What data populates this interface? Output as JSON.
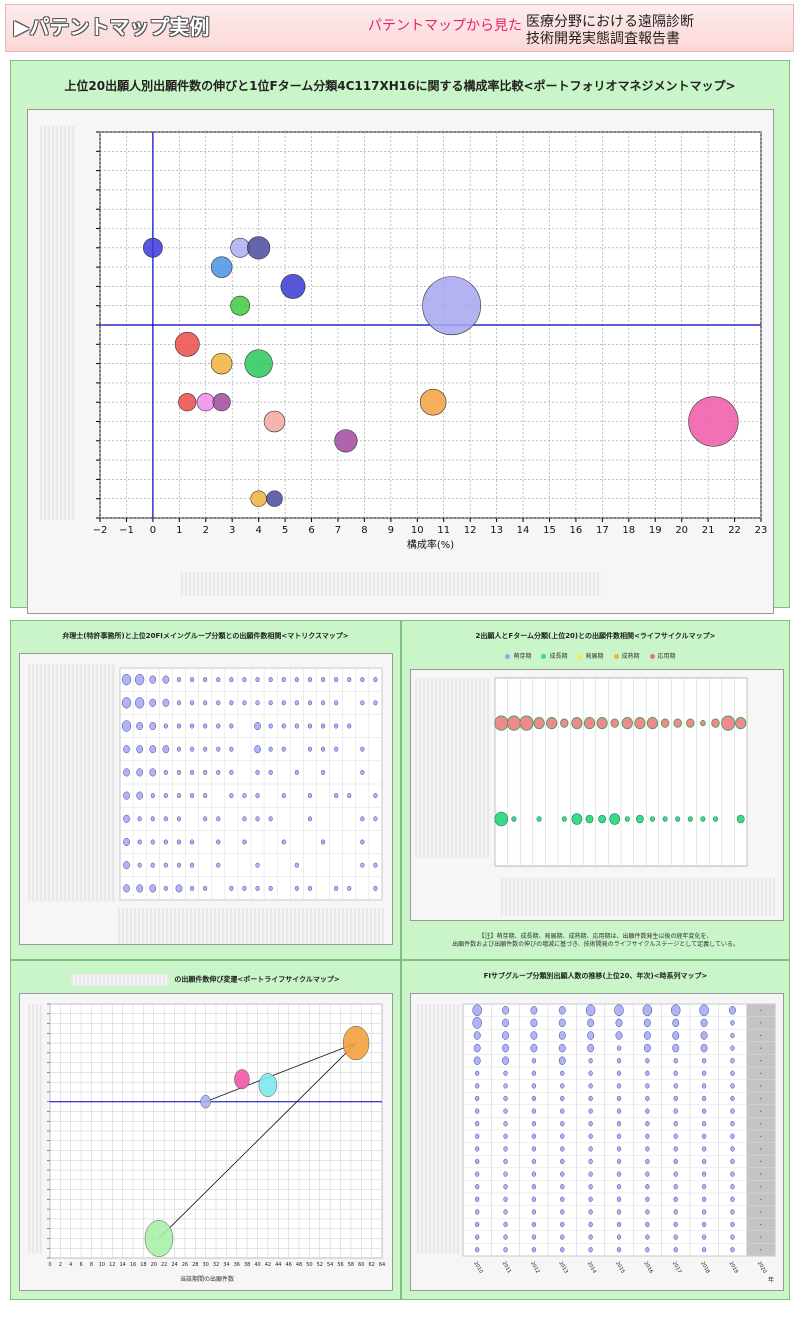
{
  "header": {
    "title": "▶パテントマップ実例",
    "subtitle": "パテントマップから見た",
    "report_line1": "医療分野における遠隔診断",
    "report_line2": "技術開発実態調査報告書"
  },
  "main_chart": {
    "title": "上位20出願人別出願件数の伸びと1位Fターム分類4C117XH16に関する構成率比較<ポートフォリオマネジメントマップ>",
    "xlabel": "構成率(%)"
  },
  "panel_a": {
    "title": "弁理士(特許事務所)と上位20FIメイングループ分類との出願件数相関<マトリクスマップ>"
  },
  "panel_b": {
    "title": "2出願人とFターム分類(上位20)との出願件数相関<ライフサイクルマップ>",
    "legend": [
      "萌芽期",
      "成長期",
      "発展期",
      "成熟期",
      "応用期"
    ],
    "note_line1": "【注】萌芽期、成長期、発展期、成熟期、応用期は、出願件数発生以後の経年変化を、",
    "note_line2": "出願件数および出願件数の伸びの増減に基づき、技術開発のライフサイクルステージとして定義している。"
  },
  "panel_c": {
    "title": "の出願件数伸び変遷<ポートライフサイクルマップ>",
    "xlabel": "当該期間の出願件数"
  },
  "panel_d": {
    "title": "FIサブグループ分類別出願人数の推移(上位20、年次)<時系列マップ>",
    "year_suffix": "年"
  },
  "colors": {
    "accent": "#e6246b",
    "panel_bg": "#c9f5c9",
    "axis_line": "#0000cc"
  },
  "chart_data": [
    {
      "type": "scatter",
      "name": "portfolio",
      "xlim": [
        -2,
        23
      ],
      "xticks": [
        -2,
        -1,
        0,
        1,
        2,
        3,
        4,
        5,
        6,
        7,
        8,
        9,
        10,
        11,
        12,
        13,
        14,
        15,
        16,
        17,
        18,
        19,
        20,
        21,
        22,
        23
      ],
      "grid": true,
      "points": [
        {
          "x": 0.0,
          "y": 14,
          "r": 0.9,
          "c": "#3b3bd9"
        },
        {
          "x": 3.3,
          "y": 14,
          "r": 0.9,
          "c": "#aab0f0"
        },
        {
          "x": 4.0,
          "y": 14,
          "r": 1.1,
          "c": "#4a4aa0"
        },
        {
          "x": 2.6,
          "y": 13,
          "r": 1.0,
          "c": "#4b92e6"
        },
        {
          "x": 5.3,
          "y": 12,
          "r": 1.2,
          "c": "#3a3ad4"
        },
        {
          "x": 3.3,
          "y": 11,
          "r": 0.9,
          "c": "#3ecb3e"
        },
        {
          "x": 11.3,
          "y": 11,
          "r": 3.2,
          "c": "#a6a6ee"
        },
        {
          "x": 1.3,
          "y": 9,
          "r": 1.2,
          "c": "#ef4a4a"
        },
        {
          "x": 2.6,
          "y": 8,
          "r": 1.0,
          "c": "#f3b13a"
        },
        {
          "x": 4.0,
          "y": 8,
          "r": 1.4,
          "c": "#28c85a"
        },
        {
          "x": 1.3,
          "y": 6,
          "r": 0.8,
          "c": "#ef4a4a"
        },
        {
          "x": 2.0,
          "y": 6,
          "r": 0.8,
          "c": "#f08ef0"
        },
        {
          "x": 2.6,
          "y": 6,
          "r": 0.8,
          "c": "#a04aa0"
        },
        {
          "x": 10.6,
          "y": 6,
          "r": 1.3,
          "c": "#f3a040"
        },
        {
          "x": 4.6,
          "y": 5,
          "r": 1.0,
          "c": "#f3a8a0"
        },
        {
          "x": 7.3,
          "y": 4,
          "r": 1.1,
          "c": "#a04aa0"
        },
        {
          "x": 21.2,
          "y": 5,
          "r": 2.7,
          "c": "#f058a8"
        },
        {
          "x": 4.0,
          "y": 1,
          "r": 0.7,
          "c": "#f3b13a"
        },
        {
          "x": 4.6,
          "y": 1,
          "r": 0.7,
          "c": "#4a4aa0"
        }
      ]
    },
    {
      "type": "scatter",
      "name": "matrix",
      "columns": 20,
      "rows": [
        [
          3,
          3,
          2,
          2,
          1,
          1,
          1,
          1,
          1,
          1,
          1,
          1,
          1,
          1,
          1,
          1,
          1,
          1,
          1,
          1
        ],
        [
          3,
          3,
          2,
          2,
          1,
          1,
          1,
          1,
          1,
          1,
          1,
          1,
          1,
          1,
          1,
          1,
          1,
          0,
          1,
          1
        ],
        [
          3,
          2,
          2,
          1,
          1,
          1,
          1,
          1,
          1,
          0,
          2,
          1,
          1,
          1,
          1,
          1,
          1,
          1,
          0,
          0
        ],
        [
          2,
          2,
          2,
          2,
          1,
          1,
          1,
          1,
          1,
          0,
          2,
          1,
          1,
          0,
          1,
          1,
          1,
          0,
          1,
          0
        ],
        [
          2,
          2,
          2,
          1,
          1,
          1,
          1,
          1,
          1,
          0,
          1,
          1,
          0,
          1,
          0,
          1,
          0,
          0,
          1,
          0
        ],
        [
          2,
          2,
          1,
          1,
          1,
          1,
          1,
          0,
          1,
          1,
          1,
          0,
          1,
          0,
          1,
          0,
          1,
          1,
          0,
          1
        ],
        [
          2,
          1,
          1,
          1,
          1,
          0,
          1,
          1,
          0,
          1,
          1,
          1,
          0,
          0,
          1,
          0,
          0,
          0,
          1,
          1
        ],
        [
          2,
          1,
          1,
          1,
          1,
          1,
          0,
          1,
          0,
          1,
          0,
          0,
          1,
          0,
          0,
          1,
          0,
          0,
          1,
          0
        ],
        [
          2,
          1,
          1,
          1,
          1,
          1,
          0,
          1,
          0,
          0,
          1,
          0,
          0,
          1,
          0,
          0,
          0,
          0,
          1,
          1
        ],
        [
          2,
          2,
          2,
          1,
          2,
          1,
          1,
          0,
          1,
          1,
          1,
          1,
          0,
          1,
          1,
          0,
          1,
          1,
          0,
          1
        ]
      ]
    },
    {
      "type": "scatter",
      "name": "lifecycle",
      "row1": [
        4,
        4,
        4,
        3,
        3,
        2,
        3,
        3,
        3,
        2,
        3,
        3,
        3,
        2,
        2,
        2,
        1,
        2,
        4,
        3
      ],
      "row2": [
        4,
        1,
        0,
        1,
        0,
        1,
        3,
        2,
        2,
        3,
        1,
        2,
        1,
        1,
        1,
        1,
        1,
        1,
        0,
        2
      ]
    },
    {
      "type": "line",
      "name": "port_lifecycle",
      "xlim": [
        0,
        64
      ],
      "xticks": [
        0,
        2,
        4,
        6,
        8,
        10,
        12,
        14,
        16,
        18,
        20,
        22,
        24,
        26,
        28,
        30,
        32,
        34,
        36,
        38,
        40,
        42,
        44,
        46,
        48,
        50,
        52,
        54,
        56,
        58,
        60,
        62,
        64
      ],
      "ylim": [
        -8,
        10
      ],
      "points": [
        {
          "x": 30,
          "y": 0,
          "r": 1.0,
          "c": "#aab0f0"
        },
        {
          "x": 37,
          "y": 2.3,
          "r": 1.5,
          "c": "#f058a8"
        },
        {
          "x": 42,
          "y": 1.7,
          "r": 1.8,
          "c": "#7fe8f0"
        },
        {
          "x": 59,
          "y": 6,
          "r": 2.6,
          "c": "#f3a040"
        },
        {
          "x": 21,
          "y": -14,
          "r": 2.8,
          "c": "#a8f0a8"
        }
      ],
      "path": [
        [
          30,
          0
        ],
        [
          59,
          6
        ],
        [
          21,
          -14
        ]
      ]
    },
    {
      "type": "scatter",
      "name": "timeseries",
      "years": [
        "2010",
        "2011",
        "2012",
        "2013",
        "2014",
        "2015",
        "2016",
        "2017",
        "2018",
        "2019",
        "2020"
      ],
      "rows": [
        [
          3,
          2,
          2,
          2,
          3,
          3,
          3,
          3,
          3,
          2,
          0
        ],
        [
          3,
          2,
          2,
          2,
          2,
          2,
          2,
          2,
          2,
          1,
          0
        ],
        [
          2,
          2,
          2,
          2,
          2,
          2,
          2,
          2,
          2,
          1,
          0
        ],
        [
          2,
          2,
          2,
          2,
          2,
          1,
          2,
          2,
          2,
          1,
          0
        ],
        [
          2,
          2,
          1,
          2,
          1,
          1,
          1,
          1,
          1,
          1,
          0
        ],
        [
          1,
          1,
          1,
          1,
          1,
          1,
          1,
          1,
          1,
          1,
          0
        ],
        [
          1,
          1,
          1,
          1,
          1,
          1,
          1,
          1,
          1,
          1,
          0
        ],
        [
          1,
          1,
          1,
          1,
          1,
          1,
          1,
          1,
          1,
          1,
          0
        ],
        [
          1,
          1,
          1,
          1,
          1,
          1,
          1,
          1,
          1,
          1,
          0
        ],
        [
          1,
          1,
          1,
          1,
          1,
          1,
          1,
          1,
          1,
          1,
          0
        ],
        [
          1,
          1,
          1,
          1,
          1,
          1,
          1,
          1,
          1,
          1,
          0
        ],
        [
          1,
          1,
          1,
          1,
          1,
          1,
          1,
          1,
          1,
          1,
          0
        ],
        [
          1,
          1,
          1,
          1,
          1,
          1,
          1,
          1,
          1,
          1,
          0
        ],
        [
          1,
          1,
          1,
          1,
          1,
          1,
          1,
          1,
          1,
          1,
          0
        ],
        [
          1,
          1,
          1,
          1,
          1,
          1,
          1,
          1,
          1,
          1,
          0
        ],
        [
          1,
          1,
          1,
          1,
          1,
          1,
          1,
          1,
          1,
          1,
          0
        ],
        [
          1,
          1,
          1,
          1,
          1,
          1,
          1,
          1,
          1,
          1,
          0
        ],
        [
          1,
          1,
          1,
          1,
          1,
          1,
          1,
          1,
          1,
          1,
          0
        ],
        [
          1,
          1,
          1,
          1,
          1,
          1,
          1,
          1,
          1,
          1,
          0
        ],
        [
          1,
          1,
          1,
          1,
          1,
          1,
          1,
          1,
          1,
          1,
          0
        ]
      ]
    }
  ]
}
